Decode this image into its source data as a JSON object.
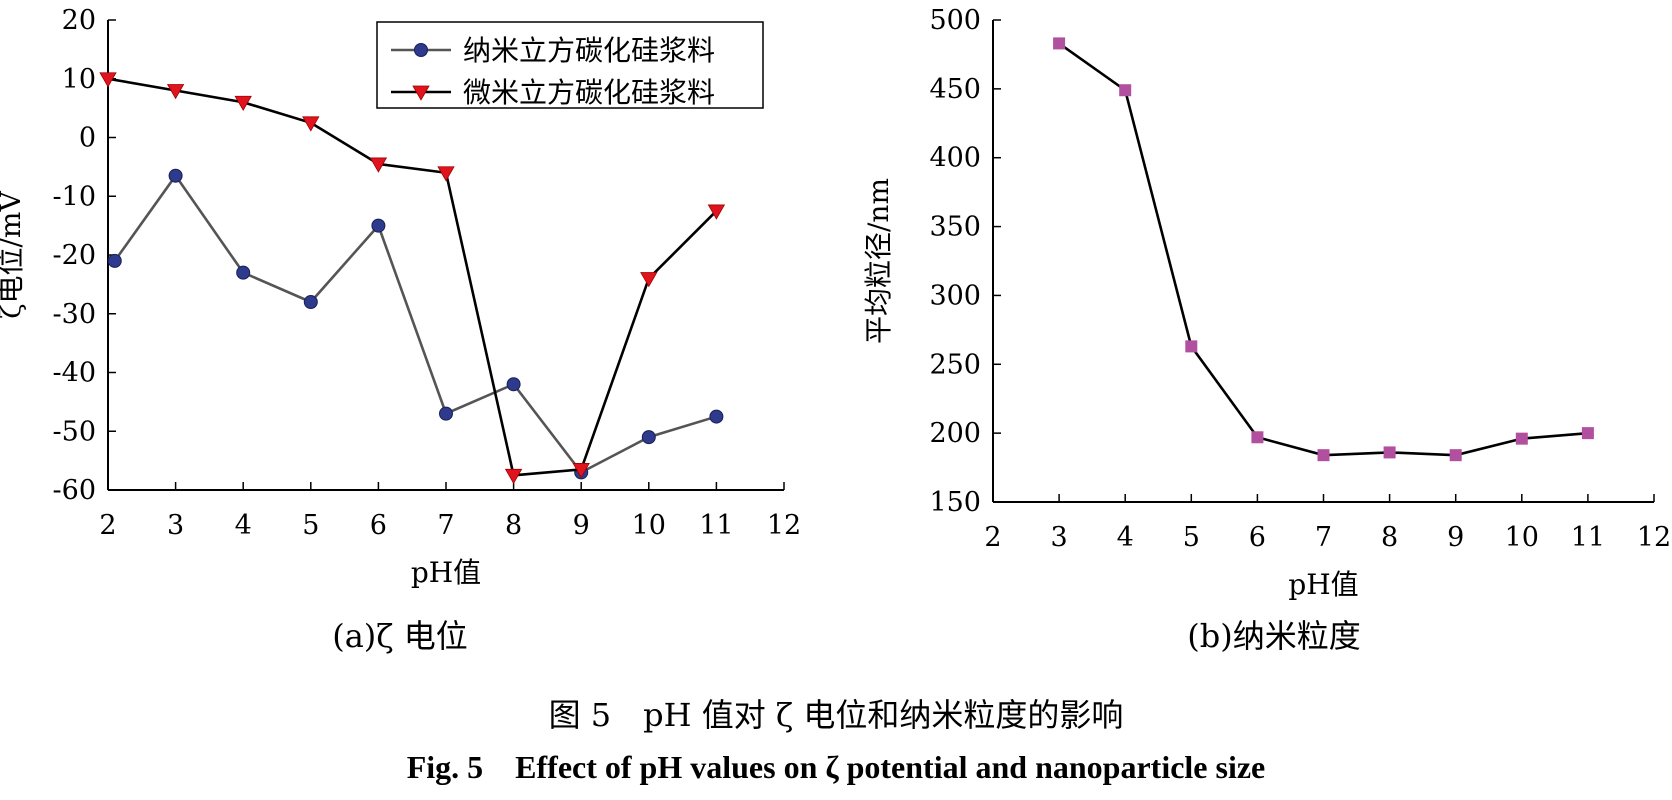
{
  "figure": {
    "caption_cn": "图 5　pH 值对 ζ 电位和纳米粒度的影响",
    "caption_en": "Fig. 5　Effect of pH values on ζ potential and nanoparticle size"
  },
  "chart_data": [
    {
      "type": "line",
      "title": "(a)ζ 电位",
      "xlabel": "pH值",
      "ylabel": "ζ电位/mV",
      "xlim": [
        2,
        12
      ],
      "ylim": [
        -60,
        20
      ],
      "xticks": [
        "2",
        "3",
        "4",
        "5",
        "6",
        "7",
        "8",
        "9",
        "10",
        "11",
        "12"
      ],
      "yticks": [
        "20",
        "10",
        "0",
        "-10",
        "-20",
        "-30",
        "-40",
        "-50",
        "-60"
      ],
      "grid": false,
      "legend_position": "top-right",
      "series": [
        {
          "name": "纳米立方碳化硅浆料",
          "marker": "circle",
          "line_color": "#555555",
          "marker_color": "#2e3a8c",
          "x": [
            2.1,
            3,
            4,
            5,
            6,
            7,
            8,
            9,
            10,
            11
          ],
          "y": [
            -21,
            -6.5,
            -23,
            -28,
            -15,
            -47,
            -42,
            -57,
            -51,
            -47.5
          ]
        },
        {
          "name": "微米立方碳化硅浆料",
          "marker": "triangle-down",
          "line_color": "#000000",
          "marker_color": "#e0141e",
          "x": [
            2,
            3,
            4,
            5,
            6,
            7,
            8,
            9,
            10,
            11
          ],
          "y": [
            10,
            8,
            6,
            2.5,
            -4.5,
            -6,
            -57.5,
            -56.5,
            -24,
            -12.5
          ]
        }
      ]
    },
    {
      "type": "line",
      "title": "(b)纳米粒度",
      "xlabel": "pH值",
      "ylabel": "平均粒径/nm",
      "xlim": [
        2,
        12
      ],
      "ylim": [
        150,
        500
      ],
      "xticks": [
        "2",
        "3",
        "4",
        "5",
        "6",
        "7",
        "8",
        "9",
        "10",
        "11",
        "12"
      ],
      "yticks": [
        "500",
        "450",
        "400",
        "350",
        "300",
        "250",
        "200",
        "150"
      ],
      "grid": false,
      "series": [
        {
          "marker": "square",
          "line_color": "#000000",
          "marker_color": "#b0509e",
          "x": [
            3,
            4,
            5,
            6,
            7,
            8,
            9,
            10,
            11
          ],
          "y": [
            483,
            449,
            263,
            197,
            184,
            186,
            184,
            196,
            200
          ]
        }
      ]
    }
  ]
}
